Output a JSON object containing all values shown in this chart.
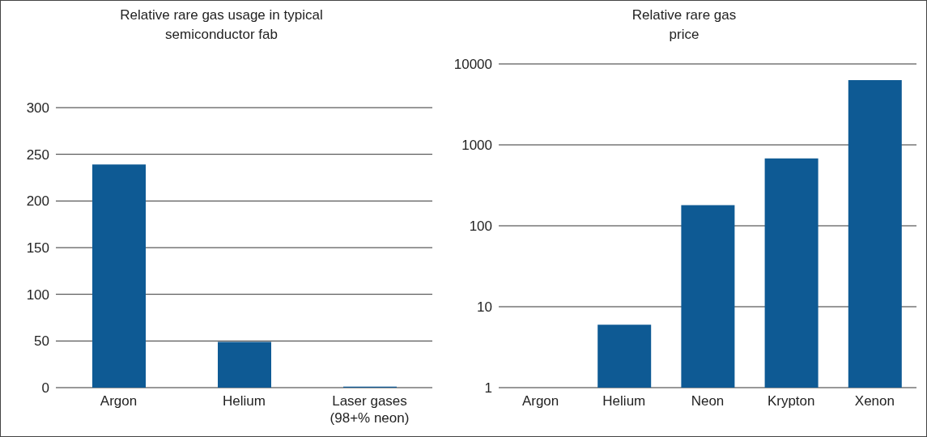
{
  "chart_data": [
    {
      "type": "bar",
      "title": "Relative rare gas usage in typical semiconductor fab",
      "categories": [
        "Argon",
        "Helium",
        "Laser gases (98+% neon)"
      ],
      "values": [
        239,
        49,
        1
      ],
      "color": "#0e5a94",
      "ylim": [
        0,
        300
      ],
      "yticks": [
        0,
        50,
        100,
        150,
        200,
        250,
        300
      ],
      "grid": "y"
    },
    {
      "type": "bar",
      "title": "Relative rare gas price",
      "categories": [
        "Argon",
        "Helium",
        "Neon",
        "Krypton",
        "Xenon"
      ],
      "values": [
        1,
        6,
        180,
        680,
        6300
      ],
      "color": "#0e5a94",
      "ylim": [
        1,
        10000
      ],
      "yticks": [
        1,
        10,
        100,
        1000,
        10000
      ],
      "grid": "y",
      "log": true
    }
  ]
}
